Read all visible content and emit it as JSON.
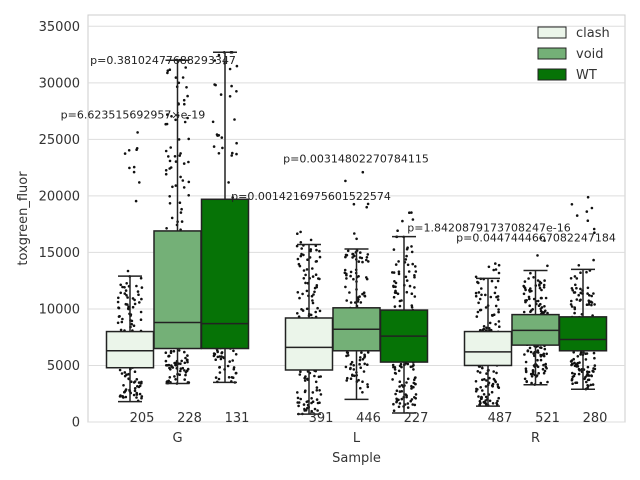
{
  "chart_data": {
    "type": "box",
    "xlabel": "Sample",
    "ylabel": "toxgreen_fluor",
    "ylim": [
      0,
      36000
    ],
    "yticks": [
      0,
      5000,
      10000,
      15000,
      20000,
      25000,
      30000,
      35000
    ],
    "grid": true,
    "legend_position": "top-right",
    "categories": [
      "G",
      "L",
      "R"
    ],
    "series": [
      {
        "name": "clash",
        "color": "#ebf5ea"
      },
      {
        "name": "void",
        "color": "#74b077"
      },
      {
        "name": "WT",
        "color": "#067306"
      }
    ],
    "boxes": [
      {
        "category": "G",
        "series": "clash",
        "whisker_low": 1800,
        "q1": 4800,
        "median": 6300,
        "q3": 8000,
        "whisker_high": 12900,
        "n": "205",
        "max_point": 27100
      },
      {
        "category": "G",
        "series": "void",
        "whisker_low": 3400,
        "q1": 6500,
        "median": 8800,
        "q3": 16900,
        "whisker_high": 32000,
        "n": "228",
        "max_point": 32000
      },
      {
        "category": "G",
        "series": "WT",
        "whisker_low": 3500,
        "q1": 6500,
        "median": 8700,
        "q3": 19700,
        "whisker_high": 32700,
        "n": "131",
        "max_point": 32700
      },
      {
        "category": "L",
        "series": "clash",
        "whisker_low": 700,
        "q1": 4600,
        "median": 6600,
        "q3": 9200,
        "whisker_high": 15700,
        "n": "391",
        "max_point": 17500
      },
      {
        "category": "L",
        "series": "void",
        "whisker_low": 2000,
        "q1": 6300,
        "median": 8200,
        "q3": 10100,
        "whisker_high": 15300,
        "n": "446",
        "max_point": 23300
      },
      {
        "category": "L",
        "series": "WT",
        "whisker_low": 800,
        "q1": 5300,
        "median": 7600,
        "q3": 9900,
        "whisker_high": 16400,
        "n": "227",
        "max_point": 19000
      },
      {
        "category": "R",
        "series": "clash",
        "whisker_low": 1400,
        "q1": 5000,
        "median": 6200,
        "q3": 8000,
        "whisker_high": 12700,
        "n": "487",
        "max_point": 14100
      },
      {
        "category": "R",
        "series": "void",
        "whisker_low": 3300,
        "q1": 6800,
        "median": 8100,
        "q3": 9500,
        "whisker_high": 13400,
        "n": "521",
        "max_point": 16400
      },
      {
        "category": "R",
        "series": "WT",
        "whisker_low": 2900,
        "q1": 6300,
        "median": 7300,
        "q3": 9300,
        "whisker_high": 13500,
        "n": "280",
        "max_point": 20600
      }
    ],
    "annotations": [
      {
        "text": "p=0.38102477688293347",
        "category": "G",
        "y": 32000
      },
      {
        "text": "p=6.623515692957×e-19",
        "category": "G",
        "y": 27200
      },
      {
        "text": "p=0.0014216975601522574",
        "category": "G",
        "y": 20000
      },
      {
        "text": "p=0.00314802270784115",
        "category": "L",
        "y": 23300
      },
      {
        "text": "p=1.8420879173708247e-16",
        "category": "L",
        "y": 17200
      },
      {
        "text": "p=0.0447444667082247184",
        "category": "R",
        "y": 16300
      }
    ]
  }
}
